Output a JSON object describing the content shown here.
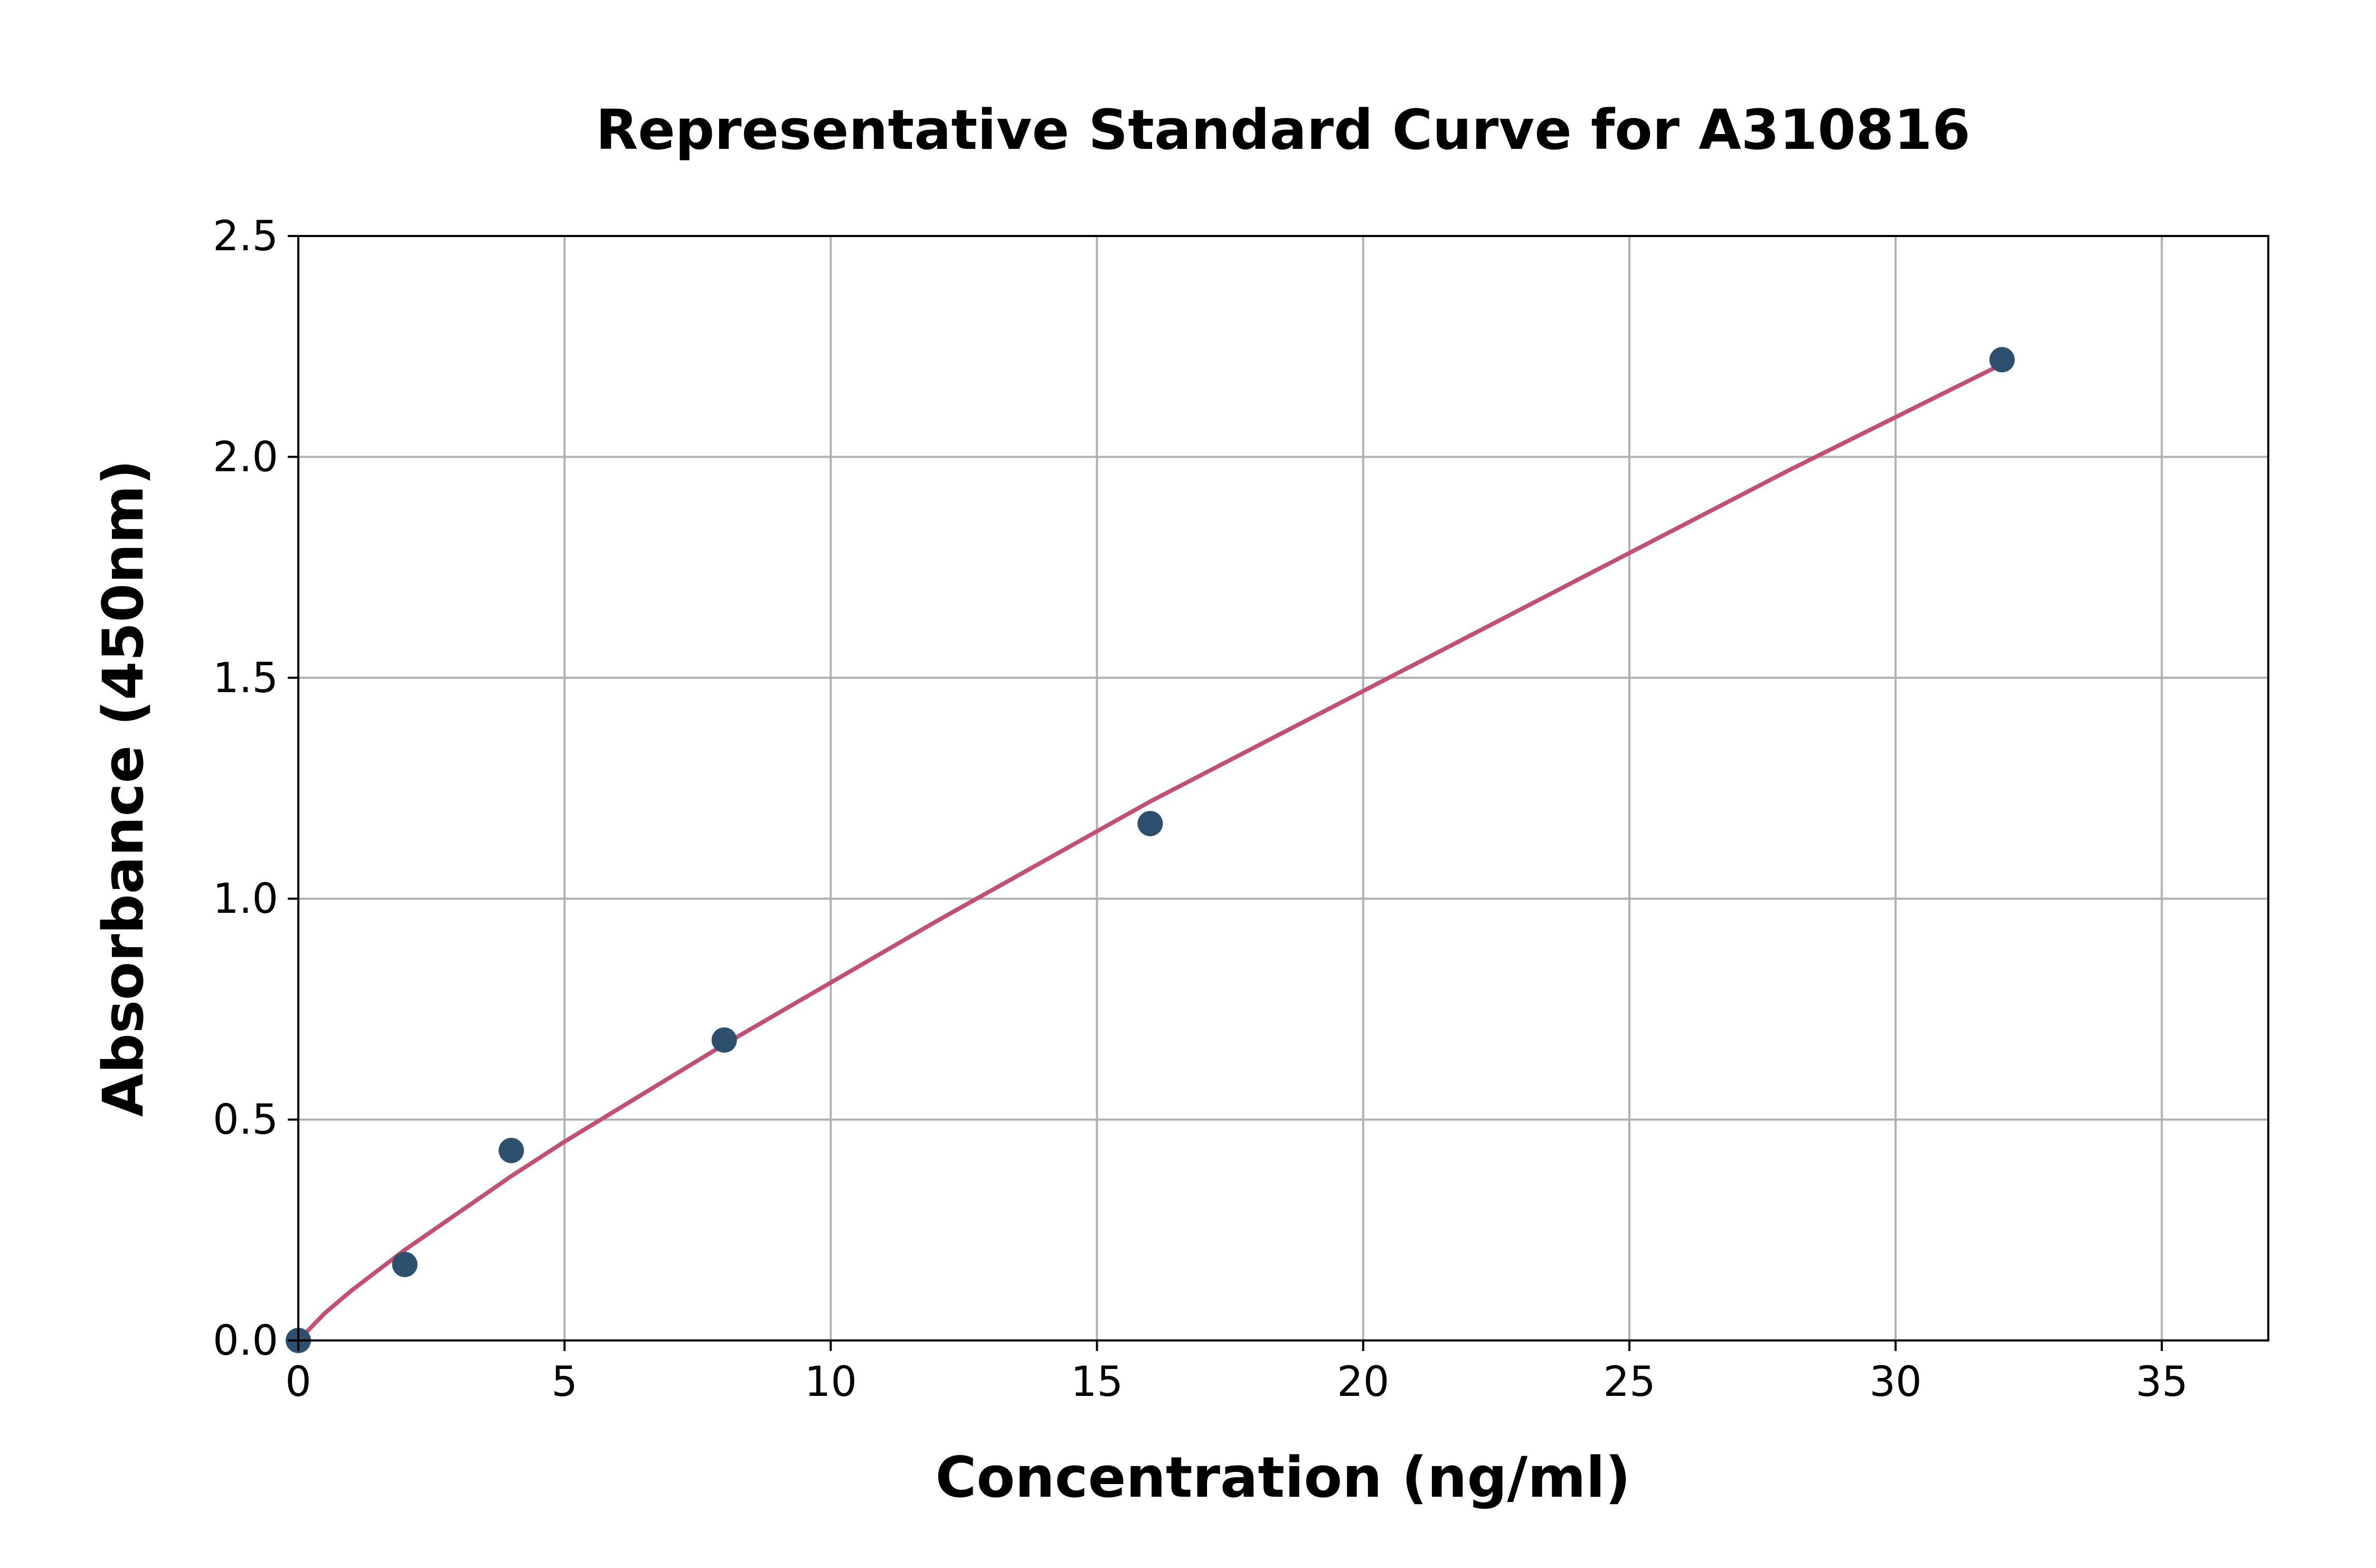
{
  "chart_data": {
    "type": "scatter",
    "title": "Representative Standard Curve for A310816",
    "xlabel": "Concentration (ng/ml)",
    "ylabel": "Absorbance (450nm)",
    "xlim": [
      0,
      37
    ],
    "ylim": [
      0,
      2.5
    ],
    "xticks": [
      "0",
      "5",
      "10",
      "15",
      "20",
      "25",
      "30",
      "35"
    ],
    "yticks": [
      "0.0",
      "0.5",
      "1.0",
      "1.5",
      "2.0",
      "2.5"
    ],
    "grid": true,
    "legend": "none",
    "points": {
      "x": [
        0,
        2,
        4,
        8,
        16,
        32
      ],
      "y": [
        0.0,
        0.172,
        0.43,
        0.68,
        1.17,
        2.22
      ],
      "color": "#2f4f6f"
    },
    "fit_curve": {
      "x": [
        0,
        0.5,
        1,
        2,
        4,
        5,
        8,
        12,
        16,
        20,
        24,
        28,
        32
      ],
      "y": [
        0,
        0.062,
        0.113,
        0.205,
        0.372,
        0.45,
        0.67,
        0.95,
        1.22,
        1.47,
        1.72,
        1.97,
        2.21
      ],
      "color": "#c05075"
    }
  }
}
